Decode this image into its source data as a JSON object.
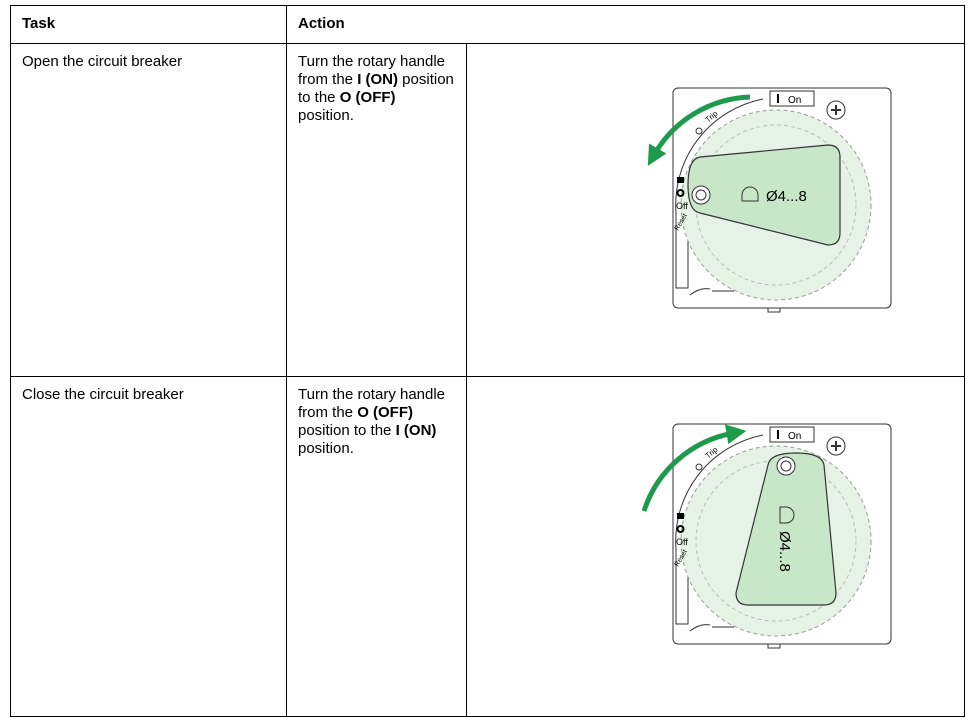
{
  "table": {
    "header": [
      "Task",
      "Action"
    ],
    "rows": [
      {
        "task": "Open the circuit breaker",
        "action": [
          "Turn the rotary handle from the ",
          "I (ON)",
          " position to the ",
          "O (OFF)",
          " position."
        ],
        "figure": {
          "on": "On",
          "trip": "Trip",
          "off": "Off",
          "reset": "Reset",
          "padlock": "Ø4...8"
        }
      },
      {
        "task": "Close the circuit breaker",
        "action": [
          "Turn the rotary handle from the ",
          "O (OFF)",
          " position to the ",
          "I (ON)",
          " position."
        ],
        "figure": {
          "on": "On",
          "trip": "Trip",
          "off": "Off",
          "reset": "Reset",
          "padlock": "Ø4...8"
        }
      }
    ]
  }
}
